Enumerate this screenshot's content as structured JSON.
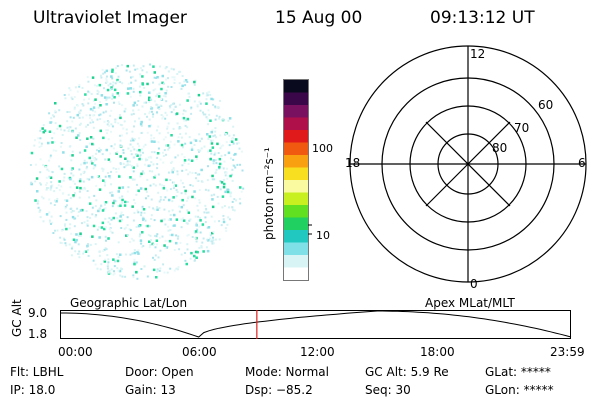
{
  "header": {
    "instrument": "Ultraviolet Imager",
    "date": "15 Aug 00",
    "time": "09:13:12 UT"
  },
  "colorbar": {
    "label": "photon cm⁻²s⁻¹",
    "ticks": [
      "100",
      "10"
    ],
    "colors": [
      "#0a0a1e",
      "#3a0848",
      "#7a1060",
      "#b0104a",
      "#e01a1a",
      "#f05a10",
      "#f8a010",
      "#f8e020",
      "#fafaa0",
      "#c8f020",
      "#60e020",
      "#20d060",
      "#20c8c0",
      "#80e0e8",
      "#d8f4f4",
      "#ffffff"
    ]
  },
  "polar_plot": {
    "mlt_labels": {
      "top": "12",
      "bottom": "0",
      "left": "18",
      "right": "6"
    },
    "lat_labels": [
      "60",
      "70",
      "80"
    ]
  },
  "timeline": {
    "left_label": "Geographic Lat/Lon",
    "right_label": "Apex MLat/MLT",
    "axis_title": "GC Alt",
    "y_ticks": [
      "9.0",
      "1.8"
    ],
    "x_ticks": [
      "00:00",
      "06:00",
      "12:00",
      "18:00",
      "23:59"
    ],
    "marker_time": "09:13",
    "marker_fraction": 0.384,
    "marker_color": "#e02020"
  },
  "info": {
    "flt": "Flt: LBHL",
    "ip": "IP: 18.0",
    "door": "Door: Open",
    "gain": "Gain: 13",
    "mode": "Mode: Normal",
    "dsp": "Dsp:  −85.2",
    "gc_alt": "GC Alt: 5.9 Re",
    "seq": "Seq: 30",
    "glat": "GLat: *****",
    "glon": "GLon: *****"
  }
}
